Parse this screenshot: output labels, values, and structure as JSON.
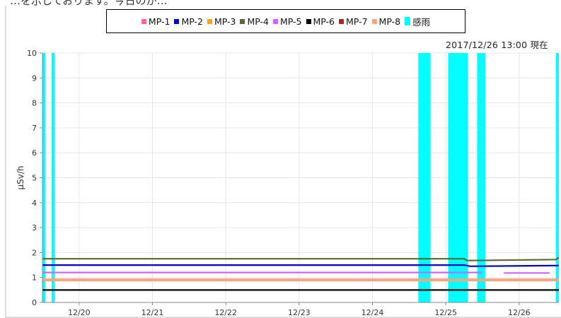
{
  "page_header_fragment": "…を示しております。今日のが…",
  "timestamp": "2017/12/26 13:00 現在",
  "chart_data": {
    "type": "line",
    "ylabel": "μSv/h",
    "xlabel": "",
    "ylim": [
      0,
      10
    ],
    "yticks": [
      0,
      1,
      2,
      3,
      4,
      5,
      6,
      7,
      8,
      9,
      10
    ],
    "xlim": [
      "2017-12-19T12:00",
      "2017-12-26T13:00"
    ],
    "xticks": [
      {
        "label": "12/20",
        "t": "2017-12-20T00:00"
      },
      {
        "label": "12/21",
        "t": "2017-12-21T00:00"
      },
      {
        "label": "12/22",
        "t": "2017-12-22T00:00"
      },
      {
        "label": "12/23",
        "t": "2017-12-23T00:00"
      },
      {
        "label": "12/24",
        "t": "2017-12-24T00:00"
      },
      {
        "label": "12/25",
        "t": "2017-12-25T00:00"
      },
      {
        "label": "12/26",
        "t": "2017-12-26T00:00"
      }
    ],
    "grid": true,
    "legend_position": "top-center",
    "series": [
      {
        "name": "MP-1",
        "color": "#ff6699",
        "values": [
          {
            "t": "2017-12-19T12:00",
            "y": 0.88
          },
          {
            "t": "2017-12-26T13:00",
            "y": 0.88
          }
        ]
      },
      {
        "name": "MP-2",
        "color": "#0000cc",
        "values": [
          {
            "t": "2017-12-19T12:00",
            "y": 1.5
          },
          {
            "t": "2017-12-25T06:00",
            "y": 1.5
          },
          {
            "t": "2017-12-25T08:00",
            "y": 1.45
          },
          {
            "t": "2017-12-26T13:00",
            "y": 1.48
          }
        ]
      },
      {
        "name": "MP-3",
        "color": "#ffa500",
        "values": [
          {
            "t": "2017-12-19T12:00",
            "y": 0.93
          },
          {
            "t": "2017-12-26T13:00",
            "y": 0.93
          }
        ]
      },
      {
        "name": "MP-4",
        "color": "#556b2f",
        "values": [
          {
            "t": "2017-12-19T12:00",
            "y": 1.75
          },
          {
            "t": "2017-12-25T06:00",
            "y": 1.75
          },
          {
            "t": "2017-12-25T07:00",
            "y": 1.68
          },
          {
            "t": "2017-12-26T12:00",
            "y": 1.72
          },
          {
            "t": "2017-12-26T13:00",
            "y": 1.8
          }
        ]
      },
      {
        "name": "MP-5",
        "color": "#cc66ff",
        "values": [
          {
            "t": "2017-12-19T12:00",
            "y": 1.2
          },
          {
            "t": "2017-12-25T12:00",
            "y": 1.2
          },
          {
            "t": "2017-12-25T18:00",
            "y": null
          },
          {
            "t": "2017-12-25T19:00",
            "y": 1.18
          },
          {
            "t": "2017-12-26T10:00",
            "y": 1.18
          }
        ]
      },
      {
        "name": "MP-6",
        "color": "#000000",
        "values": [
          {
            "t": "2017-12-19T12:00",
            "y": 0.5
          },
          {
            "t": "2017-12-26T13:00",
            "y": 0.5
          }
        ]
      },
      {
        "name": "MP-7",
        "color": "#b22222",
        "values": [
          {
            "t": "2017-12-19T12:00",
            "y": 0.88
          },
          {
            "t": "2017-12-26T13:00",
            "y": 0.88
          }
        ]
      },
      {
        "name": "MP-8",
        "color": "#f4a582",
        "values": [
          {
            "t": "2017-12-19T12:00",
            "y": 0.9
          },
          {
            "t": "2017-12-26T13:00",
            "y": 0.9
          }
        ]
      }
    ],
    "rain": {
      "name": "感雨",
      "color": "#00ffff",
      "intervals": [
        [
          "2017-12-19T12:00",
          "2017-12-19T13:00"
        ],
        [
          "2017-12-19T15:00",
          "2017-12-19T16:00"
        ],
        [
          "2017-12-24T15:00",
          "2017-12-24T19:00"
        ],
        [
          "2017-12-25T00:45",
          "2017-12-25T07:15"
        ],
        [
          "2017-12-25T10:15",
          "2017-12-25T13:00"
        ],
        [
          "2017-12-26T12:00",
          "2017-12-26T13:00"
        ]
      ]
    }
  }
}
